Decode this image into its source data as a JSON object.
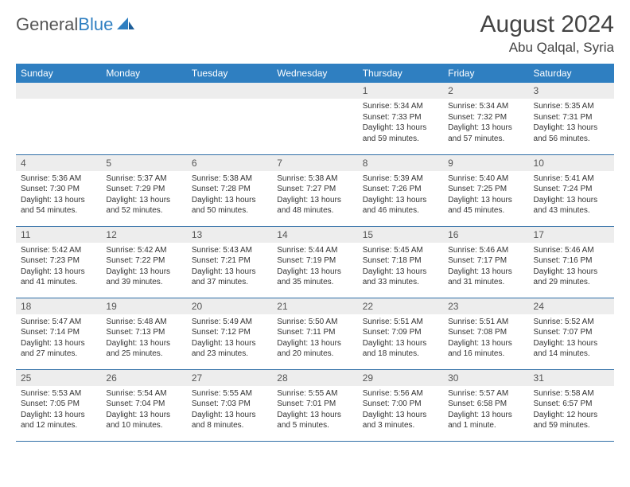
{
  "brand": {
    "name1": "General",
    "name2": "Blue"
  },
  "title": "August 2024",
  "location": "Abu Qalqal, Syria",
  "colors": {
    "header_bg": "#2f7fc1",
    "header_text": "#ffffff",
    "daynum_bg": "#ededed",
    "border": "#2f6ea6",
    "text": "#333333",
    "logo_gray": "#666666",
    "logo_blue": "#2f7fc1"
  },
  "typography": {
    "title_fontsize": 30,
    "location_fontsize": 17,
    "header_fontsize": 12,
    "daynum_fontsize": 12,
    "body_fontsize": 10
  },
  "calendar": {
    "type": "table",
    "columns": [
      "Sunday",
      "Monday",
      "Tuesday",
      "Wednesday",
      "Thursday",
      "Friday",
      "Saturday"
    ],
    "weeks": [
      [
        null,
        null,
        null,
        null,
        {
          "d": "1",
          "sr": "5:34 AM",
          "ss": "7:33 PM",
          "dl": "13 hours and 59 minutes."
        },
        {
          "d": "2",
          "sr": "5:34 AM",
          "ss": "7:32 PM",
          "dl": "13 hours and 57 minutes."
        },
        {
          "d": "3",
          "sr": "5:35 AM",
          "ss": "7:31 PM",
          "dl": "13 hours and 56 minutes."
        }
      ],
      [
        {
          "d": "4",
          "sr": "5:36 AM",
          "ss": "7:30 PM",
          "dl": "13 hours and 54 minutes."
        },
        {
          "d": "5",
          "sr": "5:37 AM",
          "ss": "7:29 PM",
          "dl": "13 hours and 52 minutes."
        },
        {
          "d": "6",
          "sr": "5:38 AM",
          "ss": "7:28 PM",
          "dl": "13 hours and 50 minutes."
        },
        {
          "d": "7",
          "sr": "5:38 AM",
          "ss": "7:27 PM",
          "dl": "13 hours and 48 minutes."
        },
        {
          "d": "8",
          "sr": "5:39 AM",
          "ss": "7:26 PM",
          "dl": "13 hours and 46 minutes."
        },
        {
          "d": "9",
          "sr": "5:40 AM",
          "ss": "7:25 PM",
          "dl": "13 hours and 45 minutes."
        },
        {
          "d": "10",
          "sr": "5:41 AM",
          "ss": "7:24 PM",
          "dl": "13 hours and 43 minutes."
        }
      ],
      [
        {
          "d": "11",
          "sr": "5:42 AM",
          "ss": "7:23 PM",
          "dl": "13 hours and 41 minutes."
        },
        {
          "d": "12",
          "sr": "5:42 AM",
          "ss": "7:22 PM",
          "dl": "13 hours and 39 minutes."
        },
        {
          "d": "13",
          "sr": "5:43 AM",
          "ss": "7:21 PM",
          "dl": "13 hours and 37 minutes."
        },
        {
          "d": "14",
          "sr": "5:44 AM",
          "ss": "7:19 PM",
          "dl": "13 hours and 35 minutes."
        },
        {
          "d": "15",
          "sr": "5:45 AM",
          "ss": "7:18 PM",
          "dl": "13 hours and 33 minutes."
        },
        {
          "d": "16",
          "sr": "5:46 AM",
          "ss": "7:17 PM",
          "dl": "13 hours and 31 minutes."
        },
        {
          "d": "17",
          "sr": "5:46 AM",
          "ss": "7:16 PM",
          "dl": "13 hours and 29 minutes."
        }
      ],
      [
        {
          "d": "18",
          "sr": "5:47 AM",
          "ss": "7:14 PM",
          "dl": "13 hours and 27 minutes."
        },
        {
          "d": "19",
          "sr": "5:48 AM",
          "ss": "7:13 PM",
          "dl": "13 hours and 25 minutes."
        },
        {
          "d": "20",
          "sr": "5:49 AM",
          "ss": "7:12 PM",
          "dl": "13 hours and 23 minutes."
        },
        {
          "d": "21",
          "sr": "5:50 AM",
          "ss": "7:11 PM",
          "dl": "13 hours and 20 minutes."
        },
        {
          "d": "22",
          "sr": "5:51 AM",
          "ss": "7:09 PM",
          "dl": "13 hours and 18 minutes."
        },
        {
          "d": "23",
          "sr": "5:51 AM",
          "ss": "7:08 PM",
          "dl": "13 hours and 16 minutes."
        },
        {
          "d": "24",
          "sr": "5:52 AM",
          "ss": "7:07 PM",
          "dl": "13 hours and 14 minutes."
        }
      ],
      [
        {
          "d": "25",
          "sr": "5:53 AM",
          "ss": "7:05 PM",
          "dl": "13 hours and 12 minutes."
        },
        {
          "d": "26",
          "sr": "5:54 AM",
          "ss": "7:04 PM",
          "dl": "13 hours and 10 minutes."
        },
        {
          "d": "27",
          "sr": "5:55 AM",
          "ss": "7:03 PM",
          "dl": "13 hours and 8 minutes."
        },
        {
          "d": "28",
          "sr": "5:55 AM",
          "ss": "7:01 PM",
          "dl": "13 hours and 5 minutes."
        },
        {
          "d": "29",
          "sr": "5:56 AM",
          "ss": "7:00 PM",
          "dl": "13 hours and 3 minutes."
        },
        {
          "d": "30",
          "sr": "5:57 AM",
          "ss": "6:58 PM",
          "dl": "13 hours and 1 minute."
        },
        {
          "d": "31",
          "sr": "5:58 AM",
          "ss": "6:57 PM",
          "dl": "12 hours and 59 minutes."
        }
      ]
    ],
    "labels": {
      "sunrise": "Sunrise:",
      "sunset": "Sunset:",
      "daylight": "Daylight:"
    }
  }
}
